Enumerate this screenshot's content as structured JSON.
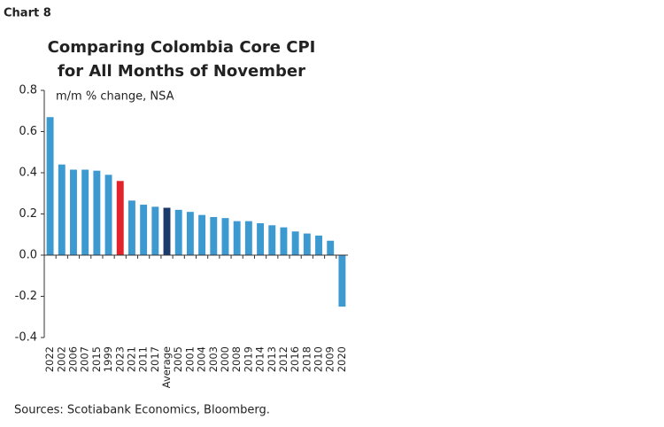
{
  "chart_data": {
    "type": "bar",
    "chart_label": "Chart 8",
    "title": [
      "Comparing Colombia Core CPI",
      "for All Months of November"
    ],
    "subtitle": "m/m % change, NSA",
    "source": "Sources: Scotiabank Economics, Bloomberg.",
    "categories": [
      "2022",
      "2002",
      "2006",
      "2007",
      "2015",
      "1999",
      "2023",
      "2021",
      "2011",
      "2017",
      "Average",
      "2005",
      "2001",
      "2004",
      "2003",
      "2000",
      "2008",
      "2019",
      "2014",
      "2013",
      "2012",
      "2016",
      "2018",
      "2010",
      "2009",
      "2020"
    ],
    "values": [
      0.67,
      0.44,
      0.415,
      0.415,
      0.41,
      0.39,
      0.36,
      0.265,
      0.245,
      0.235,
      0.23,
      0.22,
      0.21,
      0.195,
      0.185,
      0.18,
      0.165,
      0.165,
      0.155,
      0.145,
      0.135,
      0.115,
      0.105,
      0.095,
      0.07,
      -0.25
    ],
    "colors": [
      "#3d9ad1",
      "#3d9ad1",
      "#3d9ad1",
      "#3d9ad1",
      "#3d9ad1",
      "#3d9ad1",
      "#e2232b",
      "#3d9ad1",
      "#3d9ad1",
      "#3d9ad1",
      "#1c3a6b",
      "#3d9ad1",
      "#3d9ad1",
      "#3d9ad1",
      "#3d9ad1",
      "#3d9ad1",
      "#3d9ad1",
      "#3d9ad1",
      "#3d9ad1",
      "#3d9ad1",
      "#3d9ad1",
      "#3d9ad1",
      "#3d9ad1",
      "#3d9ad1",
      "#3d9ad1",
      "#3d9ad1"
    ],
    "ylim": [
      -0.4,
      0.8
    ],
    "yticks": [
      -0.4,
      -0.2,
      {
        "value": 0,
        "label": "0.0"
      },
      0.2,
      0.4,
      0.6,
      0.8
    ]
  }
}
